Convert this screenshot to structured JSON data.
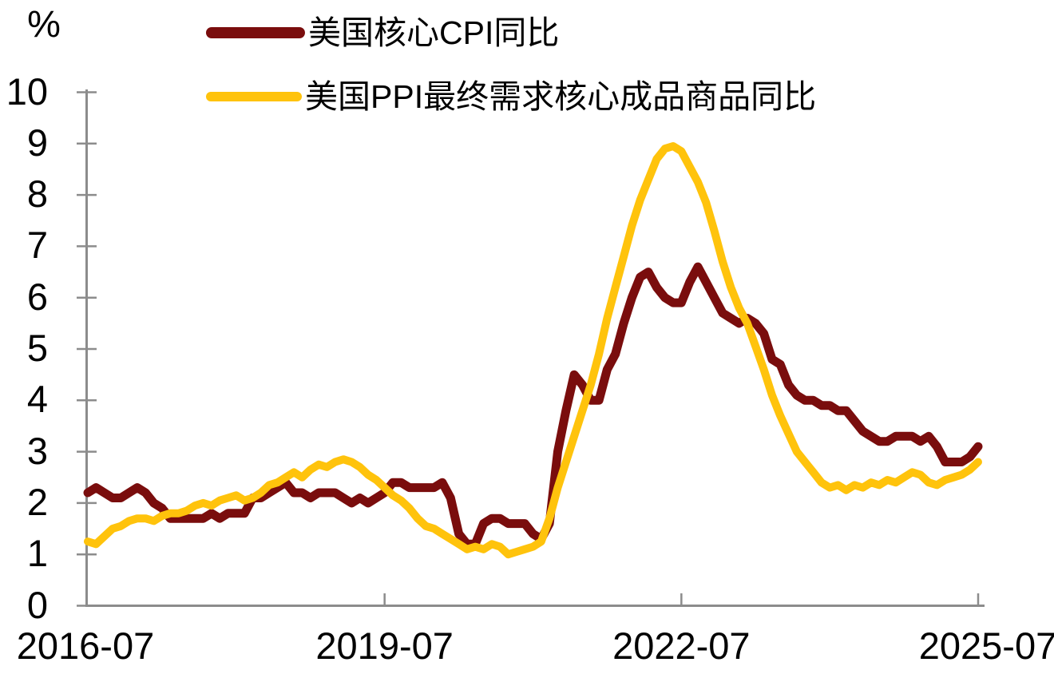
{
  "chart_data": {
    "type": "line",
    "title": "",
    "y_unit": "%",
    "xlabel": "",
    "ylabel": "",
    "x_start": "2016-07",
    "x_end": "2025-07",
    "frequency": "monthly",
    "ylim": [
      0,
      10
    ],
    "y_ticks": [
      0,
      1,
      2,
      3,
      4,
      5,
      6,
      7,
      8,
      9,
      10
    ],
    "x_tick_labels": [
      "2016-07",
      "2019-07",
      "2022-07",
      "2025-07"
    ],
    "x_tick_month_index": [
      0,
      36,
      72,
      108
    ],
    "grid": false,
    "legend_position": "top-left",
    "axis_color": "#8C8C8C",
    "text_color": "#000000",
    "background_color": "#FFFFFF",
    "series": [
      {
        "name": "美国核心CPI同比",
        "color": "#7A0D0D",
        "line_width": 11,
        "values": [
          2.2,
          2.3,
          2.2,
          2.1,
          2.1,
          2.2,
          2.3,
          2.2,
          2.0,
          1.9,
          1.7,
          1.7,
          1.7,
          1.7,
          1.7,
          1.8,
          1.7,
          1.8,
          1.8,
          1.8,
          2.1,
          2.1,
          2.2,
          2.3,
          2.4,
          2.2,
          2.2,
          2.1,
          2.2,
          2.2,
          2.2,
          2.1,
          2.0,
          2.1,
          2.0,
          2.1,
          2.2,
          2.4,
          2.4,
          2.3,
          2.3,
          2.3,
          2.3,
          2.4,
          2.1,
          1.4,
          1.2,
          1.2,
          1.6,
          1.7,
          1.7,
          1.6,
          1.6,
          1.6,
          1.4,
          1.3,
          1.6,
          3.0,
          3.8,
          4.5,
          4.3,
          4.0,
          4.0,
          4.6,
          4.9,
          5.5,
          6.0,
          6.4,
          6.5,
          6.2,
          6.0,
          5.9,
          5.9,
          6.3,
          6.6,
          6.3,
          6.0,
          5.7,
          5.6,
          5.5,
          5.6,
          5.5,
          5.3,
          4.8,
          4.7,
          4.3,
          4.1,
          4.0,
          4.0,
          3.9,
          3.9,
          3.8,
          3.8,
          3.6,
          3.4,
          3.3,
          3.2,
          3.2,
          3.3,
          3.3,
          3.3,
          3.2,
          3.3,
          3.1,
          2.8,
          2.8,
          2.8,
          2.9,
          3.1
        ]
      },
      {
        "name": "美国PPI最终需求核心成品商品同比",
        "color": "#FFC30C",
        "line_width": 10,
        "values": [
          1.25,
          1.2,
          1.35,
          1.5,
          1.55,
          1.65,
          1.7,
          1.7,
          1.65,
          1.75,
          1.8,
          1.8,
          1.85,
          1.95,
          2.0,
          1.95,
          2.05,
          2.1,
          2.15,
          2.05,
          2.1,
          2.2,
          2.35,
          2.4,
          2.5,
          2.6,
          2.5,
          2.65,
          2.75,
          2.7,
          2.8,
          2.85,
          2.8,
          2.7,
          2.55,
          2.45,
          2.3,
          2.15,
          2.05,
          1.9,
          1.7,
          1.55,
          1.5,
          1.4,
          1.3,
          1.2,
          1.1,
          1.15,
          1.1,
          1.2,
          1.15,
          1.0,
          1.05,
          1.1,
          1.15,
          1.25,
          1.7,
          2.3,
          2.8,
          3.3,
          3.8,
          4.3,
          4.9,
          5.6,
          6.2,
          6.8,
          7.4,
          7.9,
          8.3,
          8.7,
          8.9,
          8.95,
          8.85,
          8.55,
          8.25,
          7.85,
          7.3,
          6.7,
          6.2,
          5.8,
          5.5,
          5.05,
          4.6,
          4.1,
          3.7,
          3.35,
          3.0,
          2.8,
          2.6,
          2.4,
          2.3,
          2.35,
          2.25,
          2.35,
          2.3,
          2.4,
          2.35,
          2.45,
          2.4,
          2.5,
          2.6,
          2.55,
          2.4,
          2.35,
          2.45,
          2.5,
          2.55,
          2.65,
          2.8
        ]
      }
    ]
  }
}
